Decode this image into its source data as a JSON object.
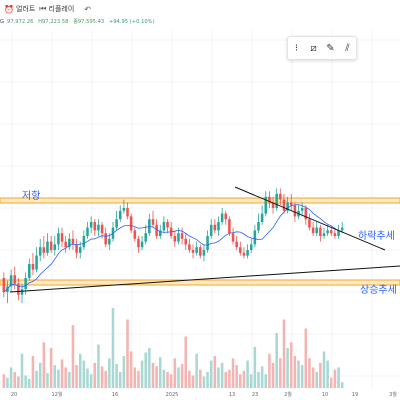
{
  "toolbar": {
    "alert_label": "얼러트",
    "replay_label": "리플레이",
    "undo_symbol": "↶"
  },
  "quote": {
    "prefix": "G",
    "open": "97,972.26",
    "high": "H97,223.58",
    "low": "종97,595.43",
    "change": "+94.95 (+0.10%)"
  },
  "annotations": {
    "resistance": "저항",
    "downtrend": "하락추세",
    "uptrend": "상승추세"
  },
  "x_axis": {
    "labels": [
      "20",
      "12월",
      "16",
      "2025",
      "13",
      "23",
      "2월",
      "10",
      "19",
      "3월"
    ]
  },
  "colors": {
    "up": "#26a69a",
    "down": "#ef5350",
    "resistance_band": "#f5a623",
    "trendline": "#111111",
    "ma": "#2962ff",
    "annotation": "#2962ff"
  },
  "drawing_tools": [
    "align-icon",
    "tilt-lines-icon",
    "pencil-icon",
    "double-slash-icon"
  ],
  "chart_data": {
    "type": "candlestick",
    "ohlc": [
      [
        75,
        70,
        77,
        68
      ],
      [
        70,
        72,
        74,
        66
      ],
      [
        72,
        76,
        78,
        70
      ],
      [
        76,
        73,
        79,
        71
      ],
      [
        73,
        69,
        75,
        67
      ],
      [
        69,
        71,
        73,
        66
      ],
      [
        71,
        75,
        77,
        69
      ],
      [
        75,
        80,
        82,
        74
      ],
      [
        80,
        78,
        84,
        76
      ],
      [
        78,
        83,
        86,
        77
      ],
      [
        83,
        86,
        89,
        81
      ],
      [
        86,
        84,
        90,
        82
      ],
      [
        84,
        88,
        91,
        83
      ],
      [
        88,
        85,
        90,
        84
      ],
      [
        85,
        87,
        90,
        83
      ],
      [
        87,
        91,
        93,
        85
      ],
      [
        91,
        88,
        93,
        86
      ],
      [
        88,
        86,
        90,
        84
      ],
      [
        86,
        89,
        91,
        85
      ],
      [
        89,
        87,
        92,
        85
      ],
      [
        87,
        84,
        89,
        82
      ],
      [
        84,
        86,
        88,
        82
      ],
      [
        86,
        90,
        92,
        85
      ],
      [
        90,
        93,
        95,
        89
      ],
      [
        93,
        95,
        97,
        91
      ],
      [
        95,
        92,
        96,
        90
      ],
      [
        92,
        94,
        96,
        90
      ],
      [
        94,
        91,
        95,
        89
      ],
      [
        91,
        87,
        93,
        86
      ],
      [
        87,
        89,
        91,
        85
      ],
      [
        89,
        93,
        95,
        88
      ],
      [
        93,
        96,
        99,
        92
      ],
      [
        96,
        99,
        101,
        95
      ],
      [
        99,
        100,
        103,
        98
      ],
      [
        100,
        97,
        102,
        96
      ],
      [
        97,
        92,
        98,
        91
      ],
      [
        92,
        89,
        93,
        88
      ],
      [
        89,
        86,
        90,
        84
      ],
      [
        86,
        88,
        90,
        85
      ],
      [
        88,
        91,
        94,
        87
      ],
      [
        91,
        96,
        98,
        90
      ],
      [
        96,
        94,
        99,
        93
      ],
      [
        94,
        90,
        96,
        89
      ],
      [
        90,
        92,
        94,
        89
      ],
      [
        92,
        95,
        97,
        91
      ],
      [
        95,
        93,
        96,
        91
      ],
      [
        93,
        90,
        95,
        89
      ],
      [
        90,
        88,
        92,
        86
      ],
      [
        88,
        91,
        93,
        87
      ],
      [
        91,
        89,
        93,
        87
      ],
      [
        89,
        87,
        91,
        85
      ],
      [
        87,
        85,
        89,
        84
      ],
      [
        85,
        84,
        87,
        82
      ],
      [
        84,
        86,
        88,
        83
      ],
      [
        86,
        83,
        87,
        82
      ],
      [
        83,
        85,
        87,
        81
      ],
      [
        85,
        90,
        92,
        84
      ],
      [
        90,
        94,
        96,
        89
      ],
      [
        94,
        92,
        96,
        91
      ],
      [
        92,
        95,
        97,
        90
      ],
      [
        95,
        98,
        100,
        94
      ],
      [
        98,
        96,
        99,
        94
      ],
      [
        96,
        91,
        97,
        90
      ],
      [
        91,
        88,
        93,
        87
      ],
      [
        88,
        86,
        90,
        85
      ],
      [
        86,
        84,
        88,
        83
      ],
      [
        84,
        83,
        86,
        82
      ],
      [
        83,
        85,
        87,
        82
      ],
      [
        85,
        87,
        89,
        84
      ],
      [
        87,
        92,
        94,
        86
      ],
      [
        92,
        95,
        98,
        91
      ],
      [
        95,
        98,
        101,
        94
      ],
      [
        98,
        104,
        106,
        97
      ],
      [
        104,
        102,
        106,
        100
      ],
      [
        102,
        100,
        104,
        98
      ],
      [
        100,
        105,
        107,
        99
      ],
      [
        105,
        103,
        107,
        101
      ],
      [
        103,
        99,
        105,
        98
      ],
      [
        99,
        102,
        104,
        98
      ],
      [
        102,
        101,
        105,
        99
      ],
      [
        101,
        97,
        102,
        95
      ],
      [
        97,
        99,
        101,
        96
      ],
      [
        99,
        100,
        102,
        97
      ],
      [
        100,
        96,
        101,
        94
      ],
      [
        96,
        93,
        98,
        92
      ],
      [
        93,
        91,
        95,
        90
      ],
      [
        91,
        93,
        95,
        90
      ],
      [
        93,
        90,
        94,
        88
      ],
      [
        90,
        91,
        93,
        89
      ],
      [
        91,
        92,
        94,
        90
      ],
      [
        92,
        91,
        93,
        90
      ],
      [
        91,
        90,
        93,
        89
      ],
      [
        90,
        92,
        94,
        89
      ],
      [
        92,
        93,
        95,
        91
      ]
    ],
    "volumes": [
      12,
      9,
      18,
      14,
      10,
      30,
      11,
      8,
      28,
      15,
      22,
      40,
      13,
      35,
      20,
      16,
      25,
      18,
      14,
      55,
      20,
      30,
      24,
      17,
      12,
      22,
      38,
      19,
      15,
      26,
      70,
      21,
      14,
      28,
      60,
      32,
      18,
      15,
      24,
      31,
      35,
      22,
      19,
      27,
      16,
      14,
      12,
      26,
      18,
      21,
      45,
      15,
      11,
      30,
      16,
      10,
      14,
      24,
      28,
      18,
      22,
      14,
      16,
      26,
      20,
      12,
      15,
      24,
      12,
      36,
      14,
      19,
      12,
      30,
      22,
      48,
      26,
      60,
      35,
      40,
      28,
      24,
      20,
      52,
      26,
      18,
      14,
      22,
      32,
      24,
      9,
      16,
      18,
      5
    ]
  }
}
